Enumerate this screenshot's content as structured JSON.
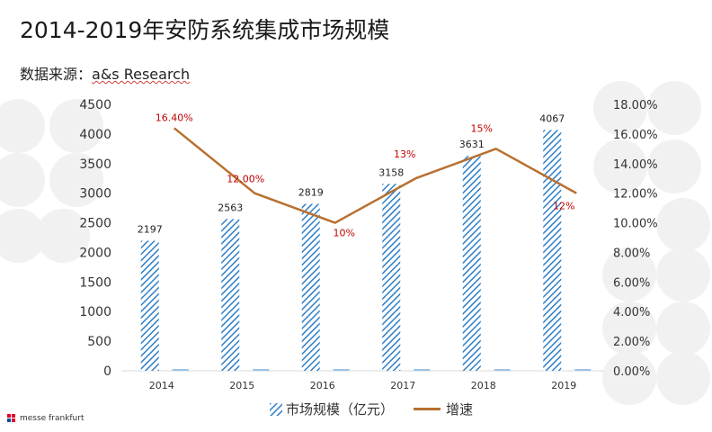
{
  "title": "2014-2019年安防系统集成市场规模",
  "source": {
    "label": "数据来源：",
    "name": "a&s Research"
  },
  "logo": {
    "text": "messe frankfurt"
  },
  "colors": {
    "bar": "#2f7fc6",
    "line": "#b8702f",
    "label_red": "#c00000",
    "axis_text": "#333333"
  },
  "chart_data": {
    "type": "bar+line",
    "categories": [
      "2014",
      "2015",
      "2016",
      "2017",
      "2018",
      "2019"
    ],
    "series": [
      {
        "name": "市场规模（亿元）",
        "type": "bar",
        "axis": "left",
        "values": [
          2197,
          2563,
          2819,
          3158,
          3631,
          4067
        ],
        "labels": [
          "2197",
          "2563",
          "2819",
          "3158",
          "3631",
          "4067"
        ]
      },
      {
        "name": "增速",
        "type": "line",
        "axis": "right",
        "values": [
          16.4,
          12.0,
          10.0,
          13.0,
          15.0,
          12.0
        ],
        "labels": [
          "16.40%",
          "12.00%",
          "10%",
          "13%",
          "15%",
          "12%"
        ]
      }
    ],
    "y_left": {
      "min": 0,
      "max": 4500,
      "ticks": [
        "0",
        "500",
        "1000",
        "1500",
        "2000",
        "2500",
        "3000",
        "3500",
        "4000",
        "4500"
      ]
    },
    "y_right": {
      "min": 0,
      "max": 18,
      "ticks": [
        "0.00%",
        "2.00%",
        "4.00%",
        "6.00%",
        "8.00%",
        "10.00%",
        "12.00%",
        "14.00%",
        "16.00%",
        "18.00%"
      ]
    },
    "legend": {
      "position": "bottom",
      "items": [
        "市场规模（亿元）",
        "增速"
      ]
    }
  }
}
